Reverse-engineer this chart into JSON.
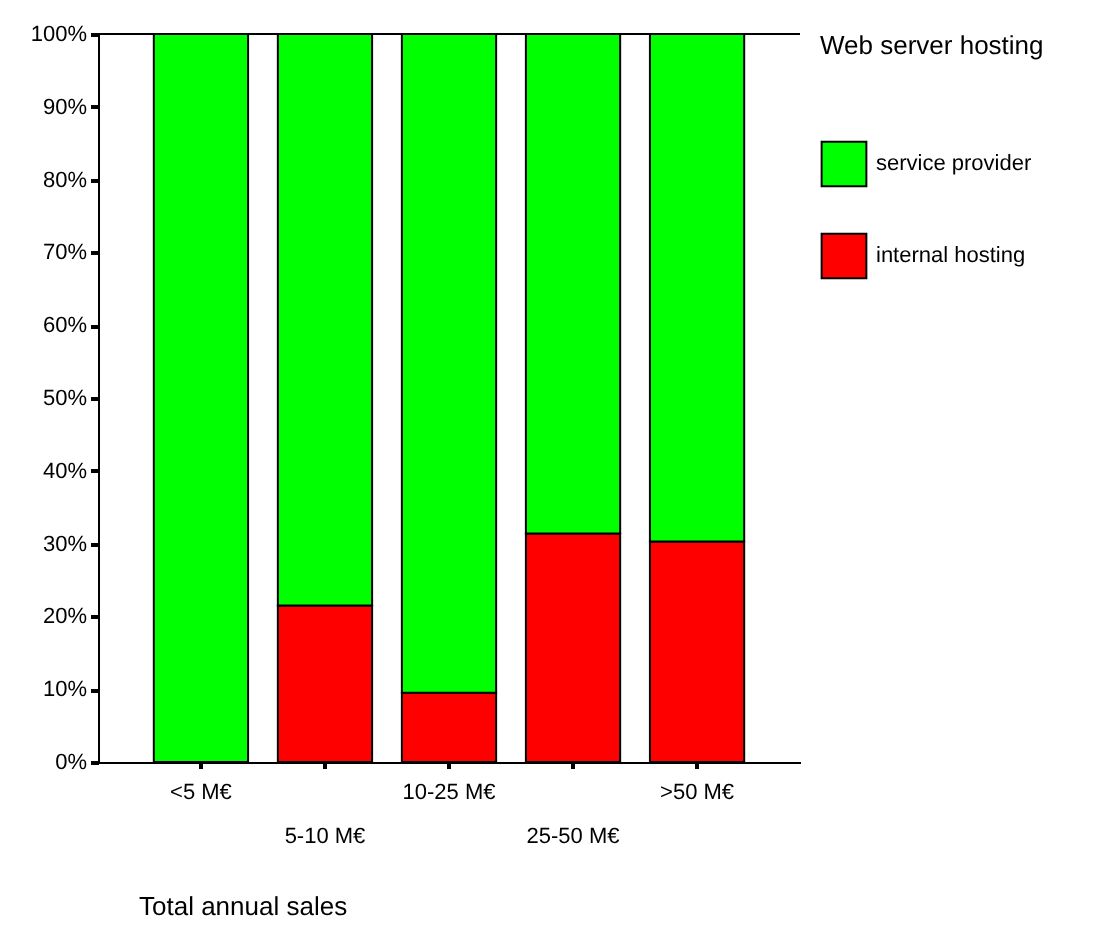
{
  "chart_data": {
    "type": "bar",
    "stacked": true,
    "xlabel": "Total annual sales",
    "legend_title": "Web server hosting",
    "legend": "right",
    "categories": [
      "<5 M€",
      "5-10 M€",
      "10-25 M€",
      "25-50 M€",
      ">50 M€"
    ],
    "series": [
      {
        "name": "internal hosting",
        "color": "#ff0000",
        "values": [
          0,
          21.5,
          9.5,
          31.4,
          30.3
        ]
      },
      {
        "name": "service provider",
        "color": "#00ff00",
        "values": [
          100,
          78.5,
          90.5,
          68.6,
          69.7
        ]
      }
    ],
    "ylim": [
      0,
      100
    ],
    "yticks": [
      {
        "value": 0,
        "label": "0%"
      },
      {
        "value": 10,
        "label": "10%"
      },
      {
        "value": 20,
        "label": "20%"
      },
      {
        "value": 30,
        "label": "30%"
      },
      {
        "value": 40,
        "label": "40%"
      },
      {
        "value": 50,
        "label": "50%"
      },
      {
        "value": 60,
        "label": "60%"
      },
      {
        "value": 70,
        "label": "70%"
      },
      {
        "value": 80,
        "label": "80%"
      },
      {
        "value": 90,
        "label": "90%"
      },
      {
        "value": 100,
        "label": "100%"
      }
    ],
    "grid": false
  }
}
